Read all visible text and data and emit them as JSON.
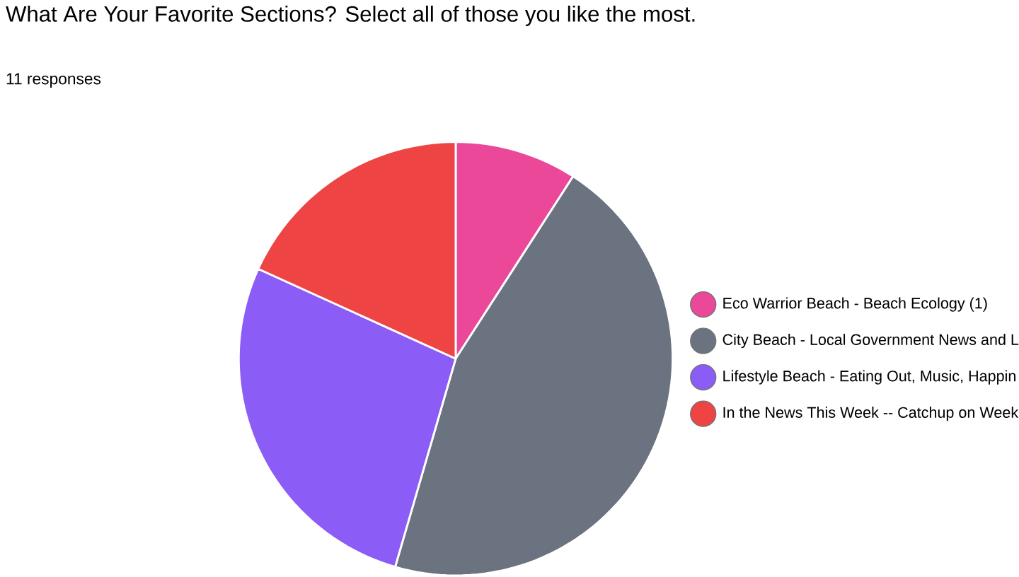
{
  "chart_data": {
    "type": "pie",
    "title": "What Are Your Favorite Sections? Select all of those you like the most.",
    "subtitle": "11 responses",
    "categories": [
      "Eco Warrior Beach - Beach Ecology (1)",
      "City Beach - Local Government News and L",
      "Lifestyle Beach - Eating Out, Music, Happin",
      "In the News This Week -- Catchup on Week"
    ],
    "values": [
      9.1,
      45.4,
      27.3,
      18.2
    ],
    "colors": [
      "#ec4899",
      "#6b7280",
      "#8b5cf6",
      "#ef4444"
    ],
    "legend": "right"
  }
}
